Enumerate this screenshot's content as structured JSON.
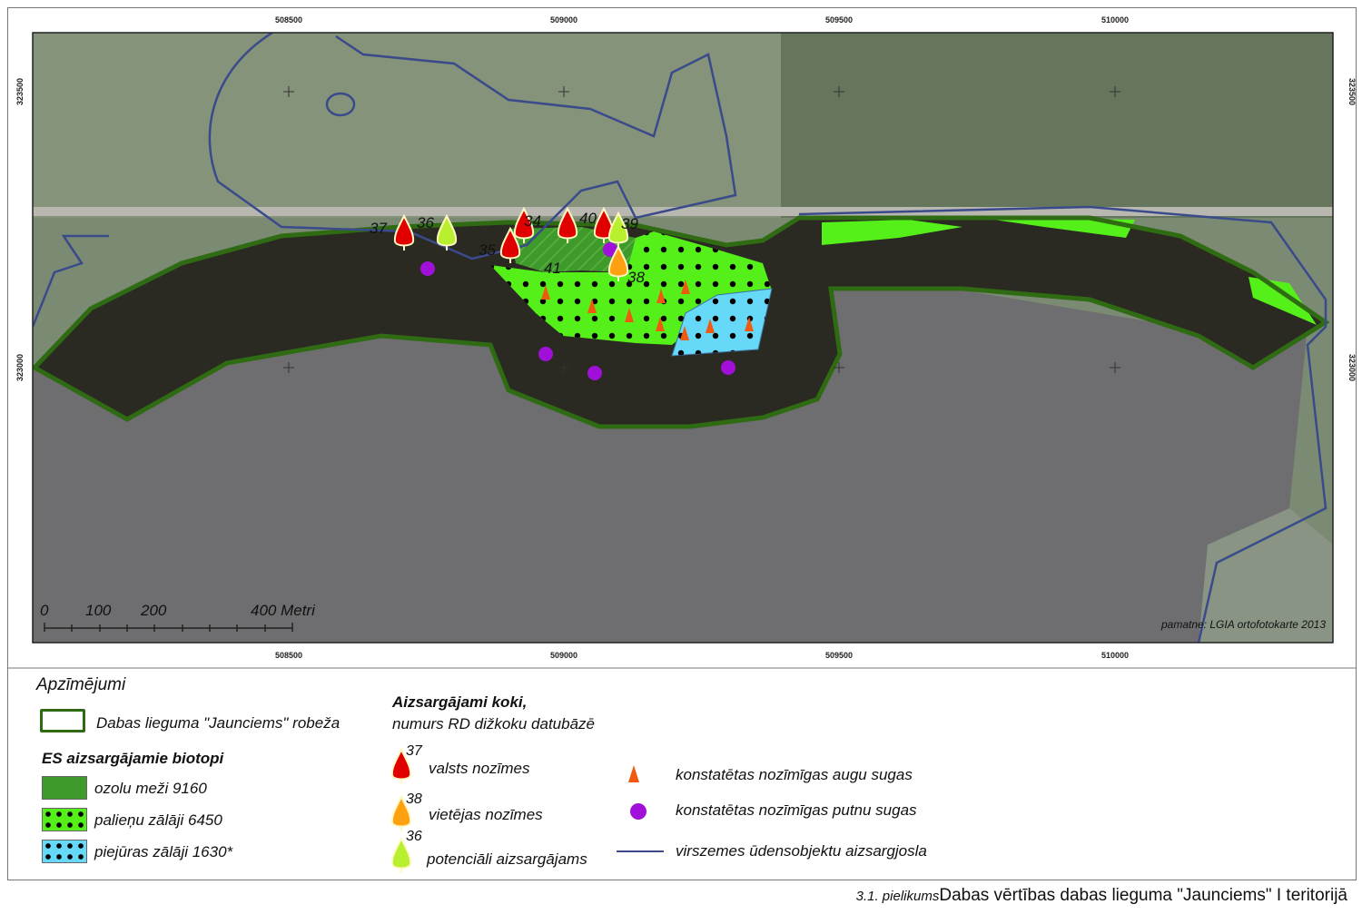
{
  "axes": {
    "x_ticks": [
      "508500",
      "509000",
      "509500",
      "510000"
    ],
    "y_ticks": [
      "323500",
      "323000"
    ]
  },
  "map": {
    "tree_labels": [
      "37",
      "36",
      "34",
      "40",
      "39",
      "35",
      "41",
      "38"
    ],
    "scale_labels": [
      "0",
      "100",
      "200",
      "400 Metri"
    ],
    "credit": "pamatne: LGIA ortofotokarte 2013"
  },
  "legend": {
    "title": "Apzīmējumi",
    "boundary": "Dabas lieguma \"Jaunciems\" robeža",
    "habitats_title": "ES aizsargājamie biotopi",
    "habitats": [
      "ozolu meži 9160",
      "palieņu zālāji 6450",
      "piejūras zālāji 1630*"
    ],
    "trees_title": "Aizsargājami koki,",
    "trees_subtitle": "numurs RD dižkoku datubāzē",
    "trees": [
      {
        "num": "37",
        "label": "valsts nozīmes"
      },
      {
        "num": "38",
        "label": "vietējas nozīmes"
      },
      {
        "num": "36",
        "label": "potenciāli aizsargājams"
      }
    ],
    "plants": "konstatētas nozīmīgas augu sugas",
    "birds": "konstatētas nozīmīgas putnu sugas",
    "zone": "virszemes ūdensobjektu aizsargjosla"
  },
  "colors": {
    "boundary": "#2e6b12",
    "oak": "#3a9a2a",
    "floodplain": "#55f01a",
    "coastal": "#66d8f8",
    "tree_state": "#e00000",
    "tree_local": "#ffa010",
    "tree_potential": "#b8f030",
    "plants": "#f05a10",
    "birds": "#a010d8",
    "zone": "#3a4a8a"
  },
  "caption": {
    "prefix": "3.1. pielikums",
    "title": "Dabas vērtības dabas lieguma \"Jaunciems\" I teritorijā"
  }
}
